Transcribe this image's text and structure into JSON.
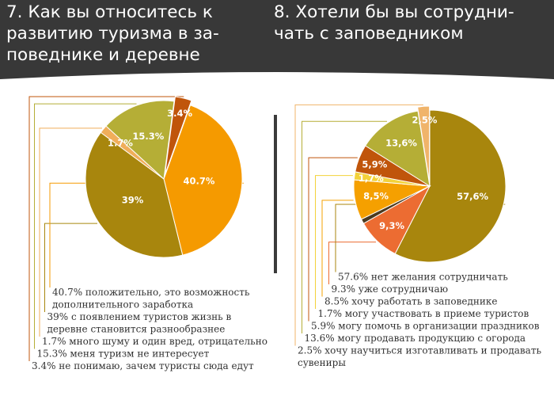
{
  "header": {
    "left_title": "7. Как вы относитесь к\nразвитию туризма в за-\nповеднике и деревне",
    "right_title": "8. Хотели бы вы сотрудни-\nчать с заповедником",
    "bg_color": "#383838"
  },
  "chart_data": [
    {
      "type": "pie",
      "title": "7. Как вы относитесь к развитию туризма в заповеднике и деревне",
      "slices": [
        {
          "label": "40.7%",
          "value": 40.7,
          "color": "#F59A00",
          "legend": [
            "40.7% положительно, это возможность",
            "дополнительного заработка"
          ]
        },
        {
          "label": "39%",
          "value": 39,
          "color": "#A8860D",
          "legend": [
            "39% с появлением туристов жизнь в",
            "деревне становится разнообразнее"
          ]
        },
        {
          "label": "1.7%",
          "value": 1.7,
          "color": "#F0AE5A",
          "legend": [
            "1.7% много шуму и один вред, отрицательно"
          ]
        },
        {
          "label": "15.3%",
          "value": 15.3,
          "color": "#B5AE36",
          "legend": [
            "15.3% меня туризм не интересует"
          ]
        },
        {
          "label": "3.4%",
          "value": 3.4,
          "color": "#C0550B",
          "legend": [
            "3.4% не понимаю, зачем туристы сюда едут"
          ]
        }
      ]
    },
    {
      "type": "pie",
      "title": "8. Хотели бы вы сотрудничать с заповедником",
      "slices": [
        {
          "label": "57,6%",
          "value": 57.6,
          "color": "#A8860D",
          "legend": [
            "57.6% нет желания сотрудничать"
          ]
        },
        {
          "label": "9,3%",
          "value": 9.3,
          "color": "#EC6C32",
          "legend": [
            "9.3% уже сотрудничаю"
          ]
        },
        {
          "label": "",
          "value": 1.0,
          "color": "#4A3A20",
          "legend": []
        },
        {
          "label": "8,5%",
          "value": 8.5,
          "color": "#F5A000",
          "legend": [
            "8.5% хочу работать в заповеднике"
          ]
        },
        {
          "label": "1,7%",
          "value": 1.7,
          "color": "#F3D23A",
          "legend": [
            "1.7% могу участвовать в приеме туристов"
          ]
        },
        {
          "label": "5,9%",
          "value": 5.9,
          "color": "#C0550B",
          "legend": [
            "5.9% могу помочь в организации праздников"
          ]
        },
        {
          "label": "13,6%",
          "value": 13.6,
          "color": "#B5AE36",
          "legend": [
            "13.6% могу продавать продукцию с огорода"
          ]
        },
        {
          "label": "2,5%",
          "value": 2.5,
          "color": "#F0B46A",
          "legend": [
            "2.5% хочу научиться изготавливать и продавать",
            "сувениры"
          ]
        }
      ]
    }
  ]
}
